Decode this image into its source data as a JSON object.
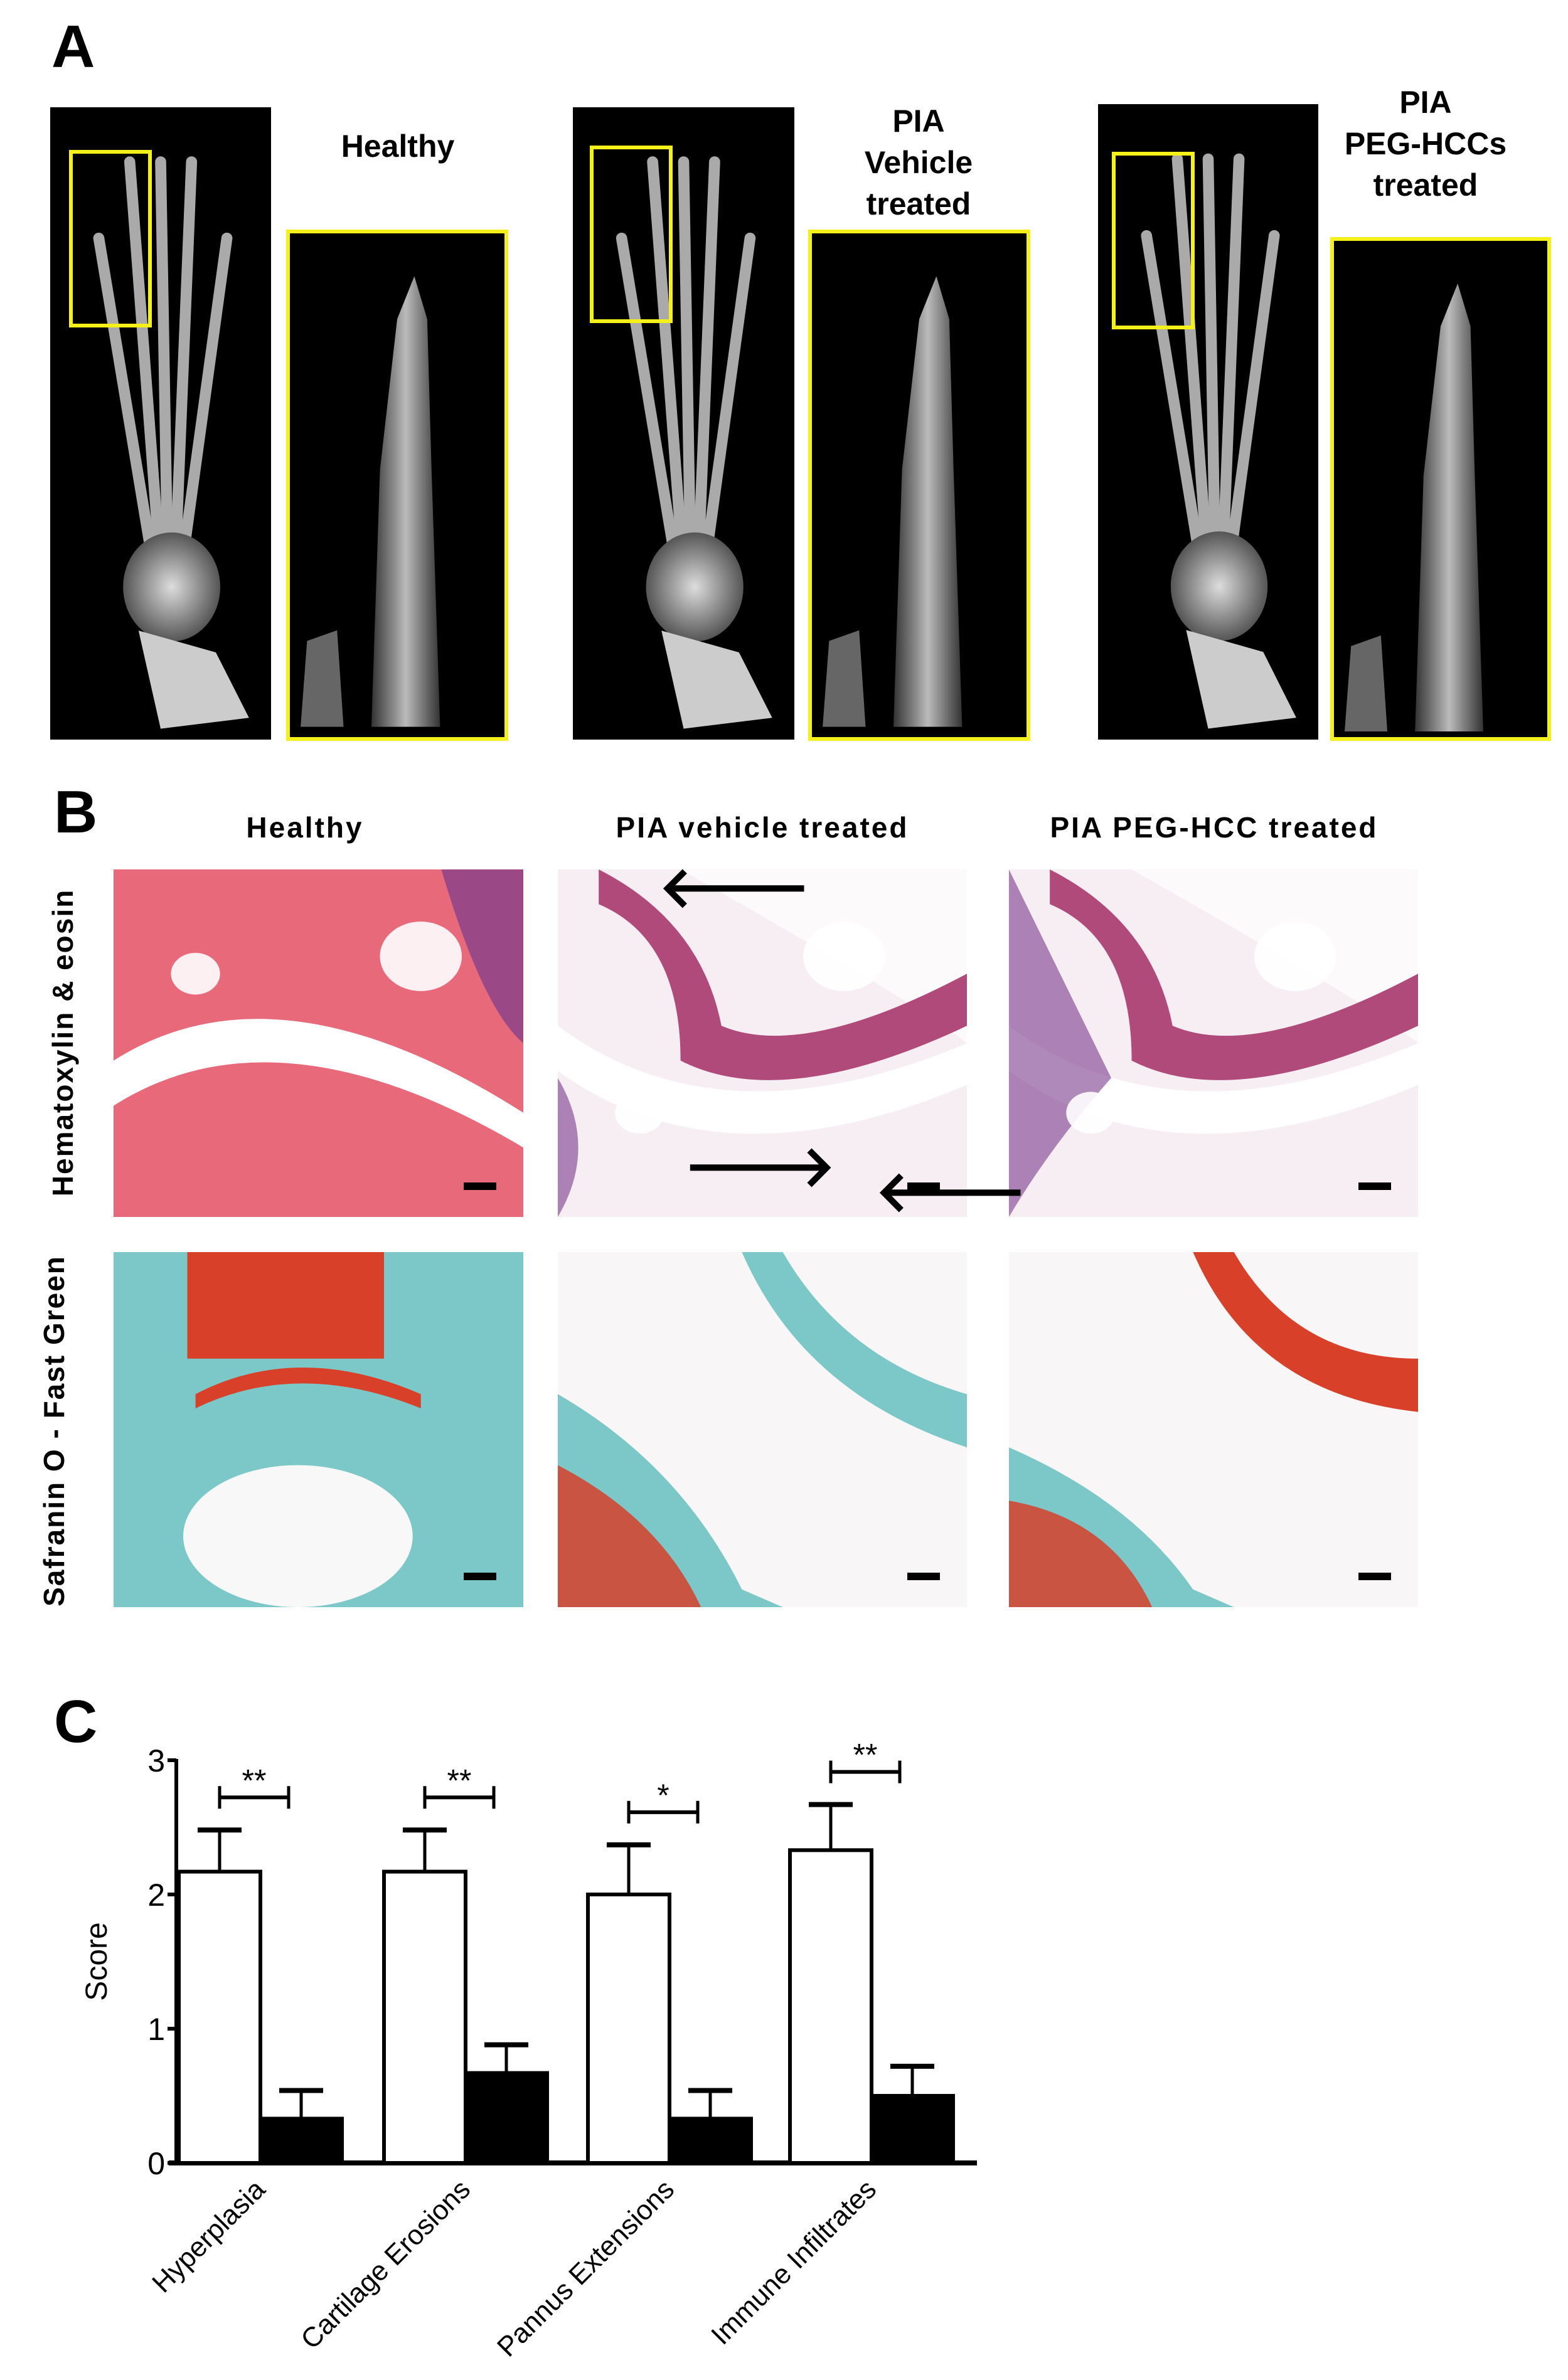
{
  "panel_a": {
    "label": "A",
    "groups": [
      {
        "title_lines": [
          "Healthy"
        ]
      },
      {
        "title_lines": [
          "PIA",
          "Vehicle",
          "treated"
        ]
      },
      {
        "title_lines": [
          "PIA",
          "PEG-HCCs",
          "treated"
        ]
      }
    ],
    "highlight_color": "#f5f01a"
  },
  "panel_b": {
    "label": "B",
    "columns": [
      "Healthy",
      "PIA vehicle treated",
      "PIA PEG-HCC treated"
    ],
    "rows": [
      "Hematoxylin & eosin",
      "Safranin O - Fast Green"
    ],
    "stain_colors": {
      "he_pink": "#e8697a",
      "he_purple": "#7a3a8c",
      "safranin_red": "#d8402a",
      "fast_green": "#7cc8c8"
    }
  },
  "panel_c": {
    "label": "C"
  },
  "chart_data": {
    "type": "bar",
    "title": "",
    "xlabel": "",
    "ylabel": "Score",
    "ylim": [
      0,
      3
    ],
    "yticks": [
      "0",
      "1",
      "2",
      "3"
    ],
    "categories": [
      "Hyperplasia",
      "Cartilage Erosions",
      "Pannus Extensions",
      "Immune Infiltrates"
    ],
    "series": [
      {
        "fill": "#ffffff",
        "values": [
          2.17,
          2.17,
          2.0,
          2.33
        ],
        "error": [
          0.31,
          0.31,
          0.37,
          0.34
        ]
      },
      {
        "fill": "#000000",
        "values": [
          0.33,
          0.67,
          0.33,
          0.5
        ],
        "error": [
          0.21,
          0.21,
          0.21,
          0.22
        ]
      }
    ],
    "significance": [
      "**",
      "**",
      "*",
      "**"
    ],
    "grid": false,
    "legend": "none"
  }
}
